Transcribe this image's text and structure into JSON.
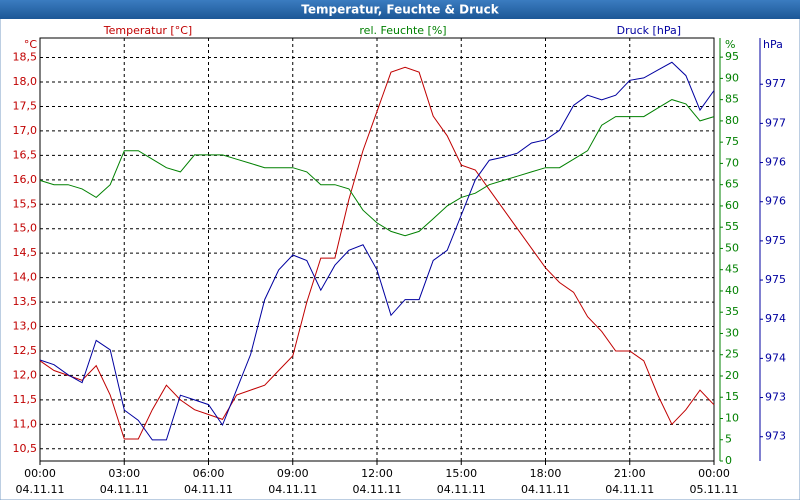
{
  "chart_data": {
    "type": "line",
    "title": "Temperatur, Feuchte & Druck",
    "x": [
      0,
      0.5,
      1,
      1.5,
      2,
      2.5,
      3,
      3.5,
      4,
      4.5,
      5,
      5.5,
      6,
      6.5,
      7,
      7.5,
      8,
      8.5,
      9,
      9.5,
      10,
      10.5,
      11,
      11.5,
      12,
      12.5,
      13,
      13.5,
      14,
      14.5,
      15,
      15.5,
      16,
      16.5,
      17,
      17.5,
      18,
      18.5,
      19,
      19.5,
      20,
      20.5,
      21,
      21.5,
      22,
      22.5,
      23,
      23.5,
      24
    ],
    "xlim": [
      0,
      24
    ],
    "xticks": [
      {
        "value": 0,
        "label": "00:00",
        "date": "04.11.11"
      },
      {
        "value": 3,
        "label": "03:00",
        "date": "04.11.11"
      },
      {
        "value": 6,
        "label": "06:00",
        "date": "04.11.11"
      },
      {
        "value": 9,
        "label": "09:00",
        "date": "04.11.11"
      },
      {
        "value": 12,
        "label": "12:00",
        "date": "04.11.11"
      },
      {
        "value": 15,
        "label": "15:00",
        "date": "04.11.11"
      },
      {
        "value": 18,
        "label": "18:00",
        "date": "04.11.11"
      },
      {
        "value": 21,
        "label": "21:00",
        "date": "04.11.11"
      },
      {
        "value": 24,
        "label": "00:00",
        "date": "05.11.11"
      }
    ],
    "ylim": [
      10.25,
      18.9
    ],
    "yticks": [
      {
        "value": 10.5,
        "label": "10,5"
      },
      {
        "value": 11,
        "label": "11,0"
      },
      {
        "value": 11.5,
        "label": "11,5"
      },
      {
        "value": 12,
        "label": "12,0"
      },
      {
        "value": 12.5,
        "label": "12,5"
      },
      {
        "value": 13,
        "label": "13,0"
      },
      {
        "value": 13.5,
        "label": "13,5"
      },
      {
        "value": 14,
        "label": "14,0"
      },
      {
        "value": 14.5,
        "label": "14,5"
      },
      {
        "value": 15,
        "label": "15,0"
      },
      {
        "value": 15.5,
        "label": "15,5"
      },
      {
        "value": 16,
        "label": "16,0"
      },
      {
        "value": 16.5,
        "label": "16,5"
      },
      {
        "value": 17,
        "label": "17,0"
      },
      {
        "value": 17.5,
        "label": "17,5"
      },
      {
        "value": 18,
        "label": "18,0"
      },
      {
        "value": 18.5,
        "label": "18,5"
      }
    ],
    "y_unit": "°C",
    "y2lim": [
      0,
      99.5
    ],
    "y2ticks": [
      0,
      5,
      10,
      15,
      20,
      25,
      30,
      35,
      40,
      45,
      50,
      55,
      60,
      65,
      70,
      75,
      80,
      85,
      90,
      95
    ],
    "y2_unit": "%",
    "y3lim": [
      972.44,
      977.84
    ],
    "y3ticks": [
      {
        "value": 972.75,
        "label": "973"
      },
      {
        "value": 973.25,
        "label": "973"
      },
      {
        "value": 973.75,
        "label": "974"
      },
      {
        "value": 974.25,
        "label": "974"
      },
      {
        "value": 974.75,
        "label": "975"
      },
      {
        "value": 975.25,
        "label": "975"
      },
      {
        "value": 975.75,
        "label": "976"
      },
      {
        "value": 976.25,
        "label": "976"
      },
      {
        "value": 976.75,
        "label": "977"
      },
      {
        "value": 977.25,
        "label": "977"
      }
    ],
    "y3_unit": "hPa",
    "grid": true,
    "series": [
      {
        "name": "Temperatur [°C]",
        "color": "#c00000",
        "axis": "y",
        "values": [
          12.3,
          12.1,
          12.0,
          11.9,
          12.2,
          11.6,
          10.7,
          10.7,
          11.3,
          11.8,
          11.5,
          11.3,
          11.2,
          11.1,
          11.6,
          11.7,
          11.8,
          12.1,
          12.4,
          13.5,
          14.4,
          14.4,
          15.6,
          16.6,
          17.4,
          18.2,
          18.3,
          18.2,
          17.3,
          16.9,
          16.3,
          16.2,
          15.8,
          15.4,
          15.0,
          14.6,
          14.2,
          13.9,
          13.7,
          13.2,
          12.9,
          12.5,
          12.5,
          12.3,
          11.6,
          11.0,
          11.3,
          11.7,
          11.4
        ]
      },
      {
        "name": "rel. Feuchte [%]",
        "color": "#008000",
        "axis": "y2",
        "values": [
          66,
          65,
          65,
          64,
          62,
          65,
          73,
          73,
          71,
          69,
          68,
          72,
          72,
          72,
          71,
          70,
          69,
          69,
          69,
          68,
          65,
          65,
          64,
          59,
          56,
          54,
          53,
          54,
          57,
          60,
          62,
          63,
          65,
          66,
          67,
          68,
          69,
          69,
          71,
          73,
          79,
          81,
          81,
          81,
          83,
          85,
          84,
          80,
          81
        ]
      },
      {
        "name": "Druck [hPa]",
        "color": "#0000a0",
        "axis": "y3",
        "values": [
          973.73,
          973.67,
          973.54,
          973.44,
          973.98,
          973.86,
          973.09,
          972.96,
          972.71,
          972.71,
          973.28,
          973.22,
          973.16,
          972.9,
          973.35,
          973.8,
          974.5,
          974.88,
          975.07,
          975.0,
          974.62,
          974.94,
          975.13,
          975.2,
          974.88,
          974.3,
          974.5,
          974.5,
          975.0,
          975.13,
          975.58,
          976.03,
          976.28,
          976.32,
          976.37,
          976.5,
          976.54,
          976.66,
          976.98,
          977.11,
          977.05,
          977.11,
          977.3,
          977.33,
          977.43,
          977.53,
          977.36,
          976.92,
          977.17
        ]
      }
    ]
  }
}
